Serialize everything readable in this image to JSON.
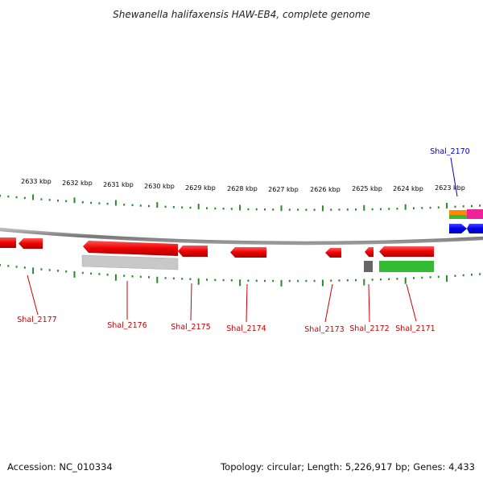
{
  "title": "Shewanella halifaxensis HAW-EB4, complete genome",
  "scale_labels": [
    "2633 kbp",
    "2632 kbp",
    "2631 kbp",
    "2630 kbp",
    "2629 kbp",
    "2628 kbp",
    "2627 kbp",
    "2626 kbp",
    "2625 kbp",
    "2624 kbp",
    "2623 kbp"
  ],
  "gene_labels": [
    {
      "id": "shal_2170",
      "text": "Shal_2170",
      "strand": "forward",
      "color": "#0000cc"
    },
    {
      "id": "shal_2171",
      "text": "Shal_2171",
      "strand": "reverse",
      "color": "#cc0000"
    },
    {
      "id": "shal_2172",
      "text": "Shal_2172",
      "strand": "reverse",
      "color": "#cc0000"
    },
    {
      "id": "shal_2173",
      "text": "Shal_2173",
      "strand": "reverse",
      "color": "#cc0000"
    },
    {
      "id": "shal_2174",
      "text": "Shal_2174",
      "strand": "reverse",
      "color": "#cc0000"
    },
    {
      "id": "shal_2175",
      "text": "Shal_2175",
      "strand": "reverse",
      "color": "#cc0000"
    },
    {
      "id": "shal_2176",
      "text": "Shal_2176",
      "strand": "reverse",
      "color": "#cc0000"
    },
    {
      "id": "shal_2177",
      "text": "Shal_2177",
      "strand": "reverse",
      "color": "#cc0000"
    }
  ],
  "colors": {
    "forward_cds": "#0000ee",
    "reverse_cds": "#ee0000",
    "backbone": "#888888",
    "tick": "#2a8a2a",
    "gc_gray": "#c8c8c8",
    "gc_dark": "#666666",
    "gc_green": "#33bb33",
    "gc_orange": "#ff8800",
    "gc_magenta": "#ee2299"
  },
  "footer": {
    "accession": "Accession: NC_010334",
    "summary": "Topology: circular; Length: 5,226,917 bp; Genes: 4,433"
  }
}
